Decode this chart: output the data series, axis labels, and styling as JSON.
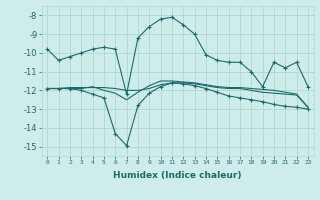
{
  "xlabel": "Humidex (Indice chaleur)",
  "xlim": [
    -0.5,
    23.5
  ],
  "ylim": [
    -15.5,
    -7.5
  ],
  "yticks": [
    -15,
    -14,
    -13,
    -12,
    -11,
    -10,
    -9,
    -8
  ],
  "xticks": [
    0,
    1,
    2,
    3,
    4,
    5,
    6,
    7,
    8,
    9,
    10,
    11,
    12,
    13,
    14,
    15,
    16,
    17,
    18,
    19,
    20,
    21,
    22,
    23
  ],
  "bg_color": "#ceecea",
  "line_color": "#1a6b6b",
  "grid_color": "#add8d5",
  "series": [
    {
      "x": [
        0,
        1,
        2,
        3,
        4,
        5,
        6,
        7,
        8,
        9,
        10,
        11,
        12,
        13,
        14,
        15,
        16,
        17,
        18,
        19,
        20,
        21,
        22,
        23
      ],
      "y": [
        -9.8,
        -10.4,
        -10.2,
        -10.0,
        -9.8,
        -9.7,
        -9.8,
        -12.2,
        -9.2,
        -8.6,
        -8.2,
        -8.1,
        -8.5,
        -9.0,
        -10.1,
        -10.4,
        -10.5,
        -10.5,
        -11.0,
        -11.8,
        -10.5,
        -10.8,
        -10.5,
        -11.8
      ],
      "marker": true
    },
    {
      "x": [
        0,
        1,
        2,
        3,
        4,
        5,
        6,
        7,
        8,
        9,
        10,
        11,
        12,
        13,
        14,
        15,
        16,
        17,
        18,
        19,
        20,
        21,
        22,
        23
      ],
      "y": [
        -11.9,
        -11.9,
        -11.9,
        -11.9,
        -11.8,
        -12.0,
        -12.15,
        -12.5,
        -12.1,
        -11.75,
        -11.5,
        -11.5,
        -11.55,
        -11.6,
        -11.7,
        -11.8,
        -11.85,
        -11.85,
        -11.9,
        -11.95,
        -12.0,
        -12.1,
        -12.2,
        -12.9
      ],
      "marker": false
    },
    {
      "x": [
        0,
        1,
        2,
        3,
        4,
        5,
        6,
        7,
        8,
        9,
        10,
        11,
        12,
        13,
        14,
        15,
        16,
        17,
        18,
        19,
        20,
        21,
        22,
        23
      ],
      "y": [
        -11.9,
        -11.9,
        -11.9,
        -12.0,
        -12.2,
        -12.4,
        -14.3,
        -14.95,
        -12.8,
        -12.15,
        -11.8,
        -11.6,
        -11.65,
        -11.75,
        -11.9,
        -12.1,
        -12.3,
        -12.4,
        -12.5,
        -12.6,
        -12.75,
        -12.85,
        -12.9,
        -13.0
      ],
      "marker": true
    },
    {
      "x": [
        0,
        1,
        2,
        3,
        4,
        5,
        6,
        7,
        8,
        9,
        10,
        11,
        12,
        13,
        14,
        15,
        16,
        17,
        18,
        19,
        20,
        21,
        22,
        23
      ],
      "y": [
        -11.9,
        -11.9,
        -11.85,
        -11.85,
        -11.85,
        -11.85,
        -11.9,
        -12.0,
        -12.0,
        -11.9,
        -11.7,
        -11.6,
        -11.6,
        -11.65,
        -11.75,
        -11.85,
        -11.9,
        -11.9,
        -12.0,
        -12.1,
        -12.15,
        -12.2,
        -12.25,
        -12.9
      ],
      "marker": false
    }
  ]
}
